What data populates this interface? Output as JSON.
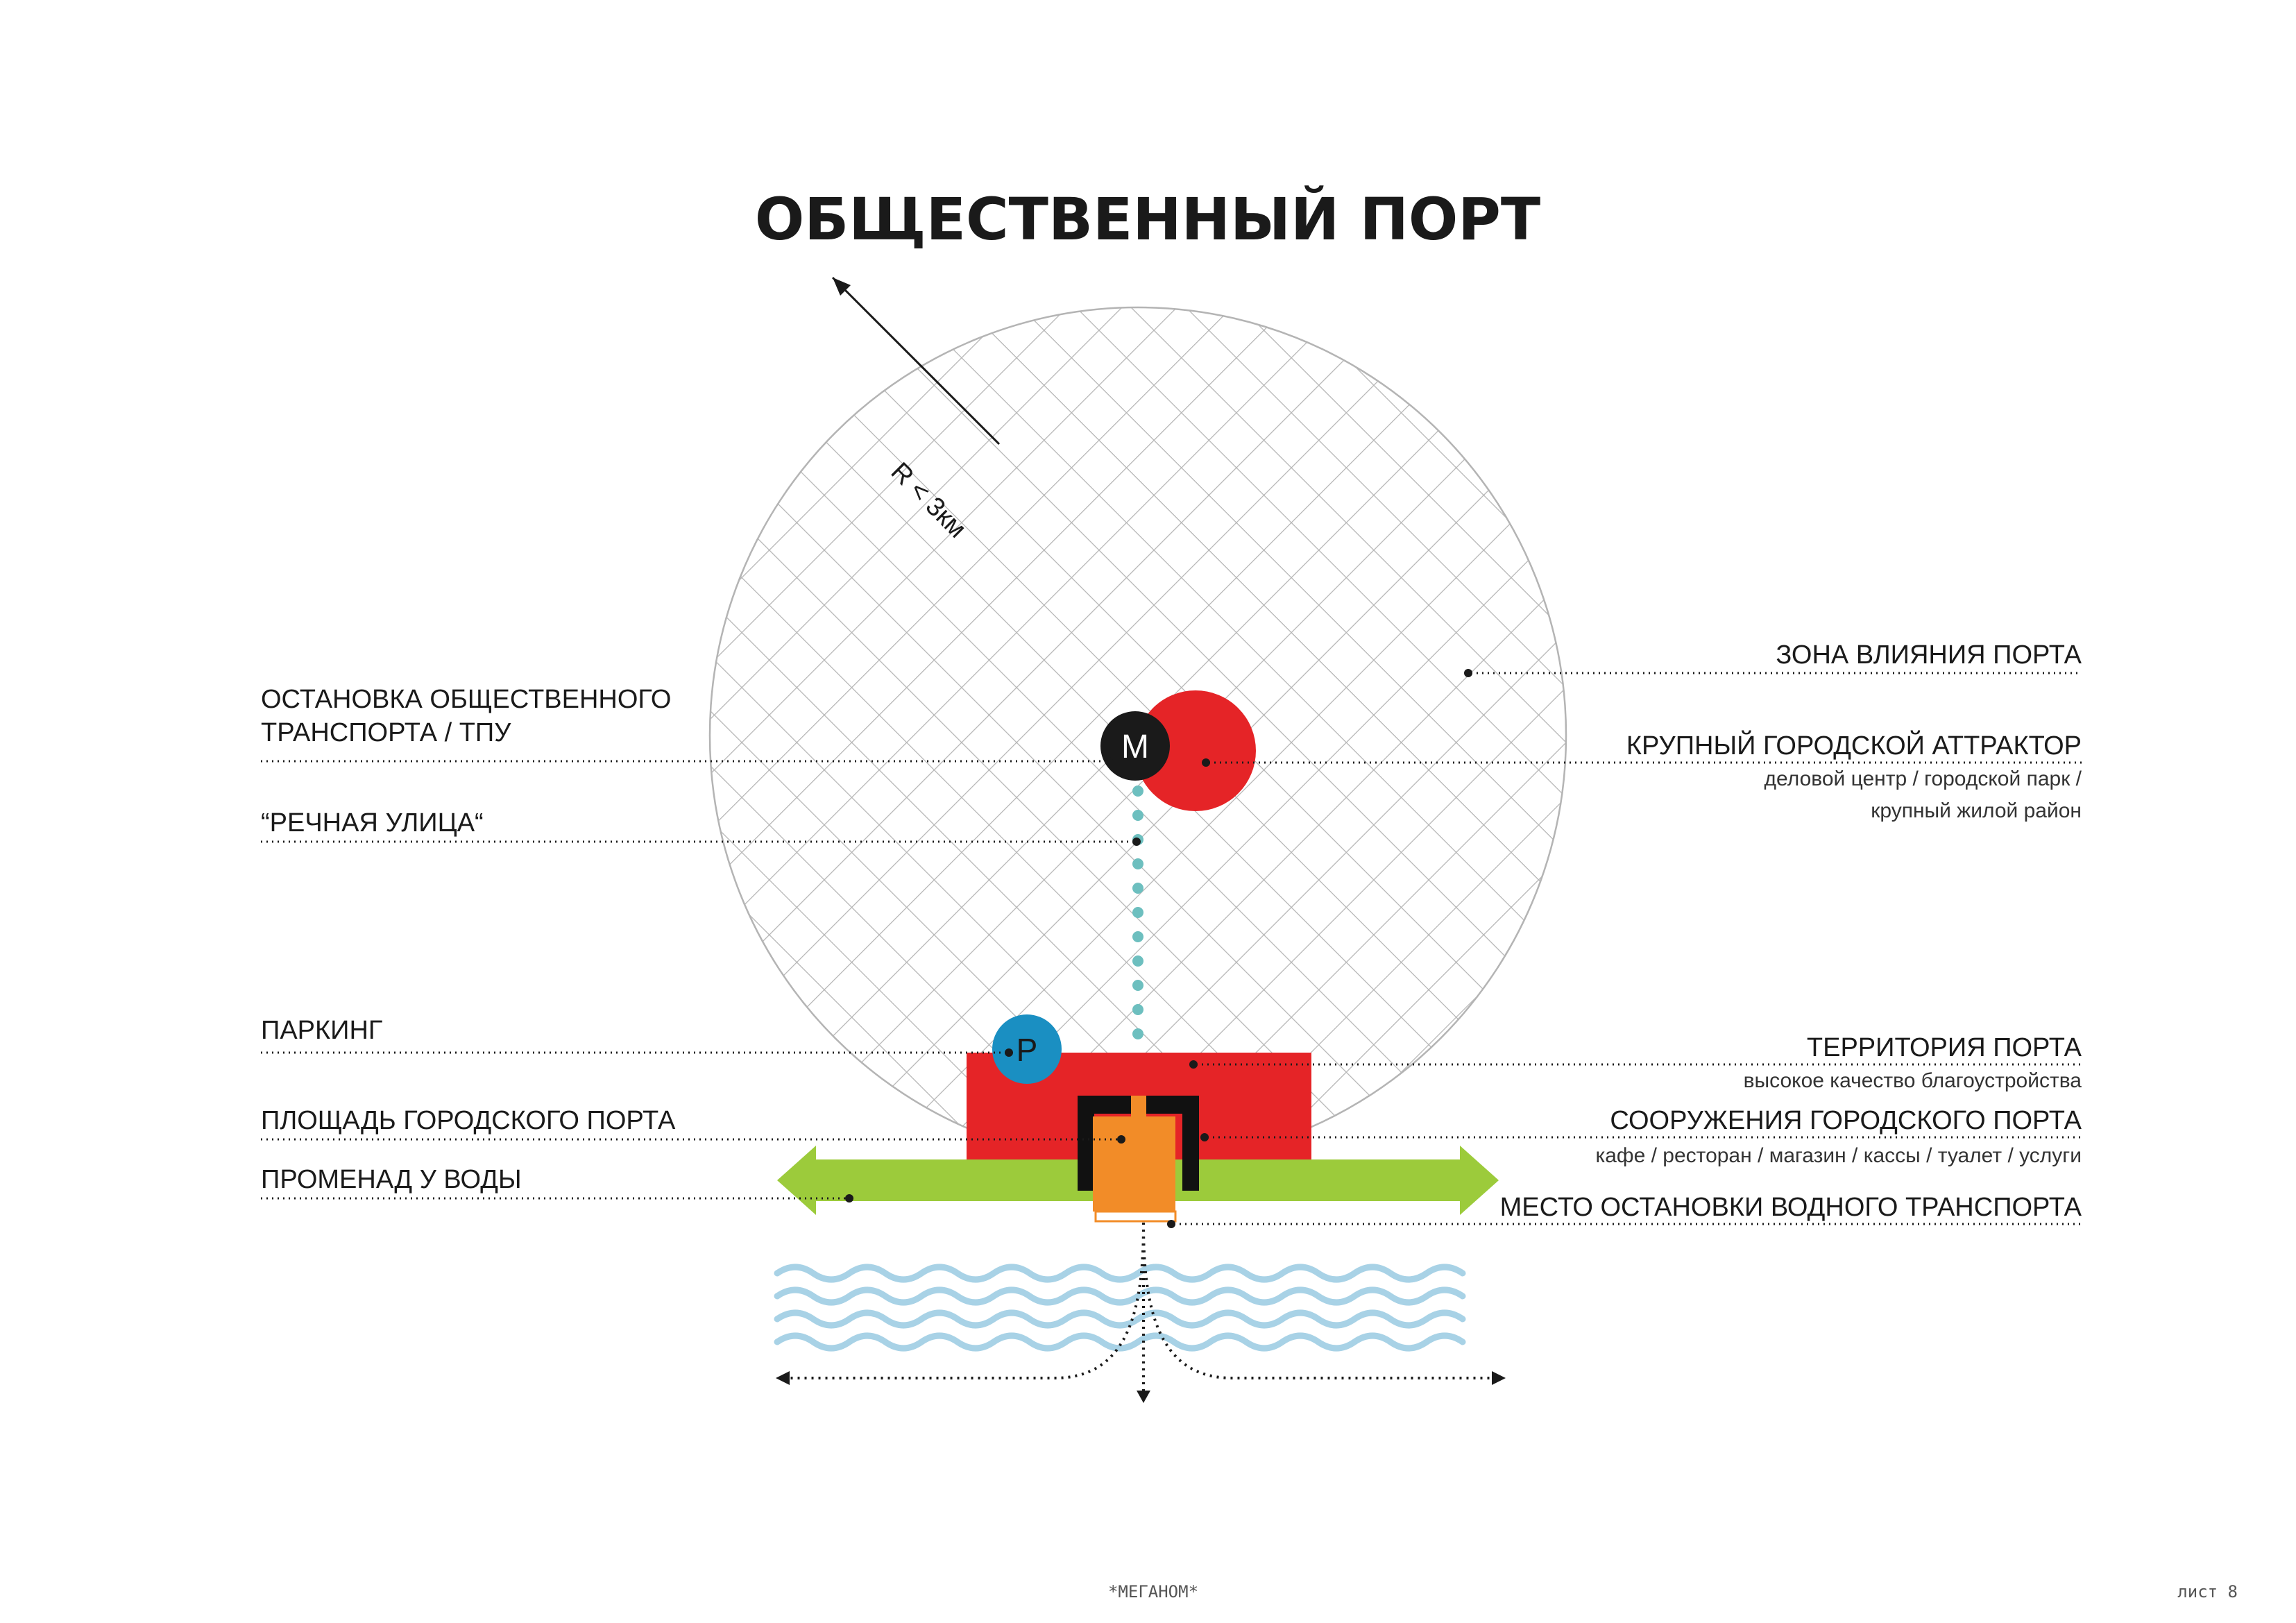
{
  "title": "ОБЩЕСТВЕННЫЙ ПОРТ",
  "radius_label": "R < 3км",
  "markers": {
    "metro": "M",
    "parking": "P"
  },
  "labels_left": {
    "transit_stop_line1": "ОСТАНОВКА ОБЩЕСТВЕННОГО",
    "transit_stop_line2": "ТРАНСПОРТА / ТПУ",
    "river_street": "“РЕЧНАЯ УЛИЦА“",
    "parking": "ПАРКИНГ",
    "port_square": "ПЛОЩАДЬ ГОРОДСКОГО ПОРТА",
    "promenade": "ПРОМЕНАД У ВОДЫ"
  },
  "labels_right": {
    "influence_zone": "ЗОНА ВЛИЯНИЯ ПОРТА",
    "attractor": "КРУПНЫЙ ГОРОДСКОЙ АТТРАКТОР",
    "attractor_sub1": "деловой центр /  городской парк /",
    "attractor_sub2": "крупный жилой район",
    "port_territory": "ТЕРРИТОРИЯ ПОРТА",
    "port_territory_sub": "высокое качество благоустройства",
    "port_buildings": "СООРУЖЕНИЯ ГОРОДСКОГО ПОРТА",
    "port_buildings_sub": "кафе / ресторан / магазин / кассы / туалет / услуги",
    "water_stop": "МЕСТО ОСТАНОВКИ ВОДНОГО ТРАНСПОРТА"
  },
  "footer": {
    "brand": "*МЕГАНОМ*",
    "page": "лист 8"
  },
  "colors": {
    "attractor_red": "#e52427",
    "territory_red": "#e52427",
    "parking_blue": "#1a8fc2",
    "building_orange": "#f28c28",
    "promenade_green": "#9ccb3b",
    "river_teal": "#6dbfbf",
    "water_blue": "#a8d2e6",
    "hatch_gray": "#b4b4b4"
  }
}
